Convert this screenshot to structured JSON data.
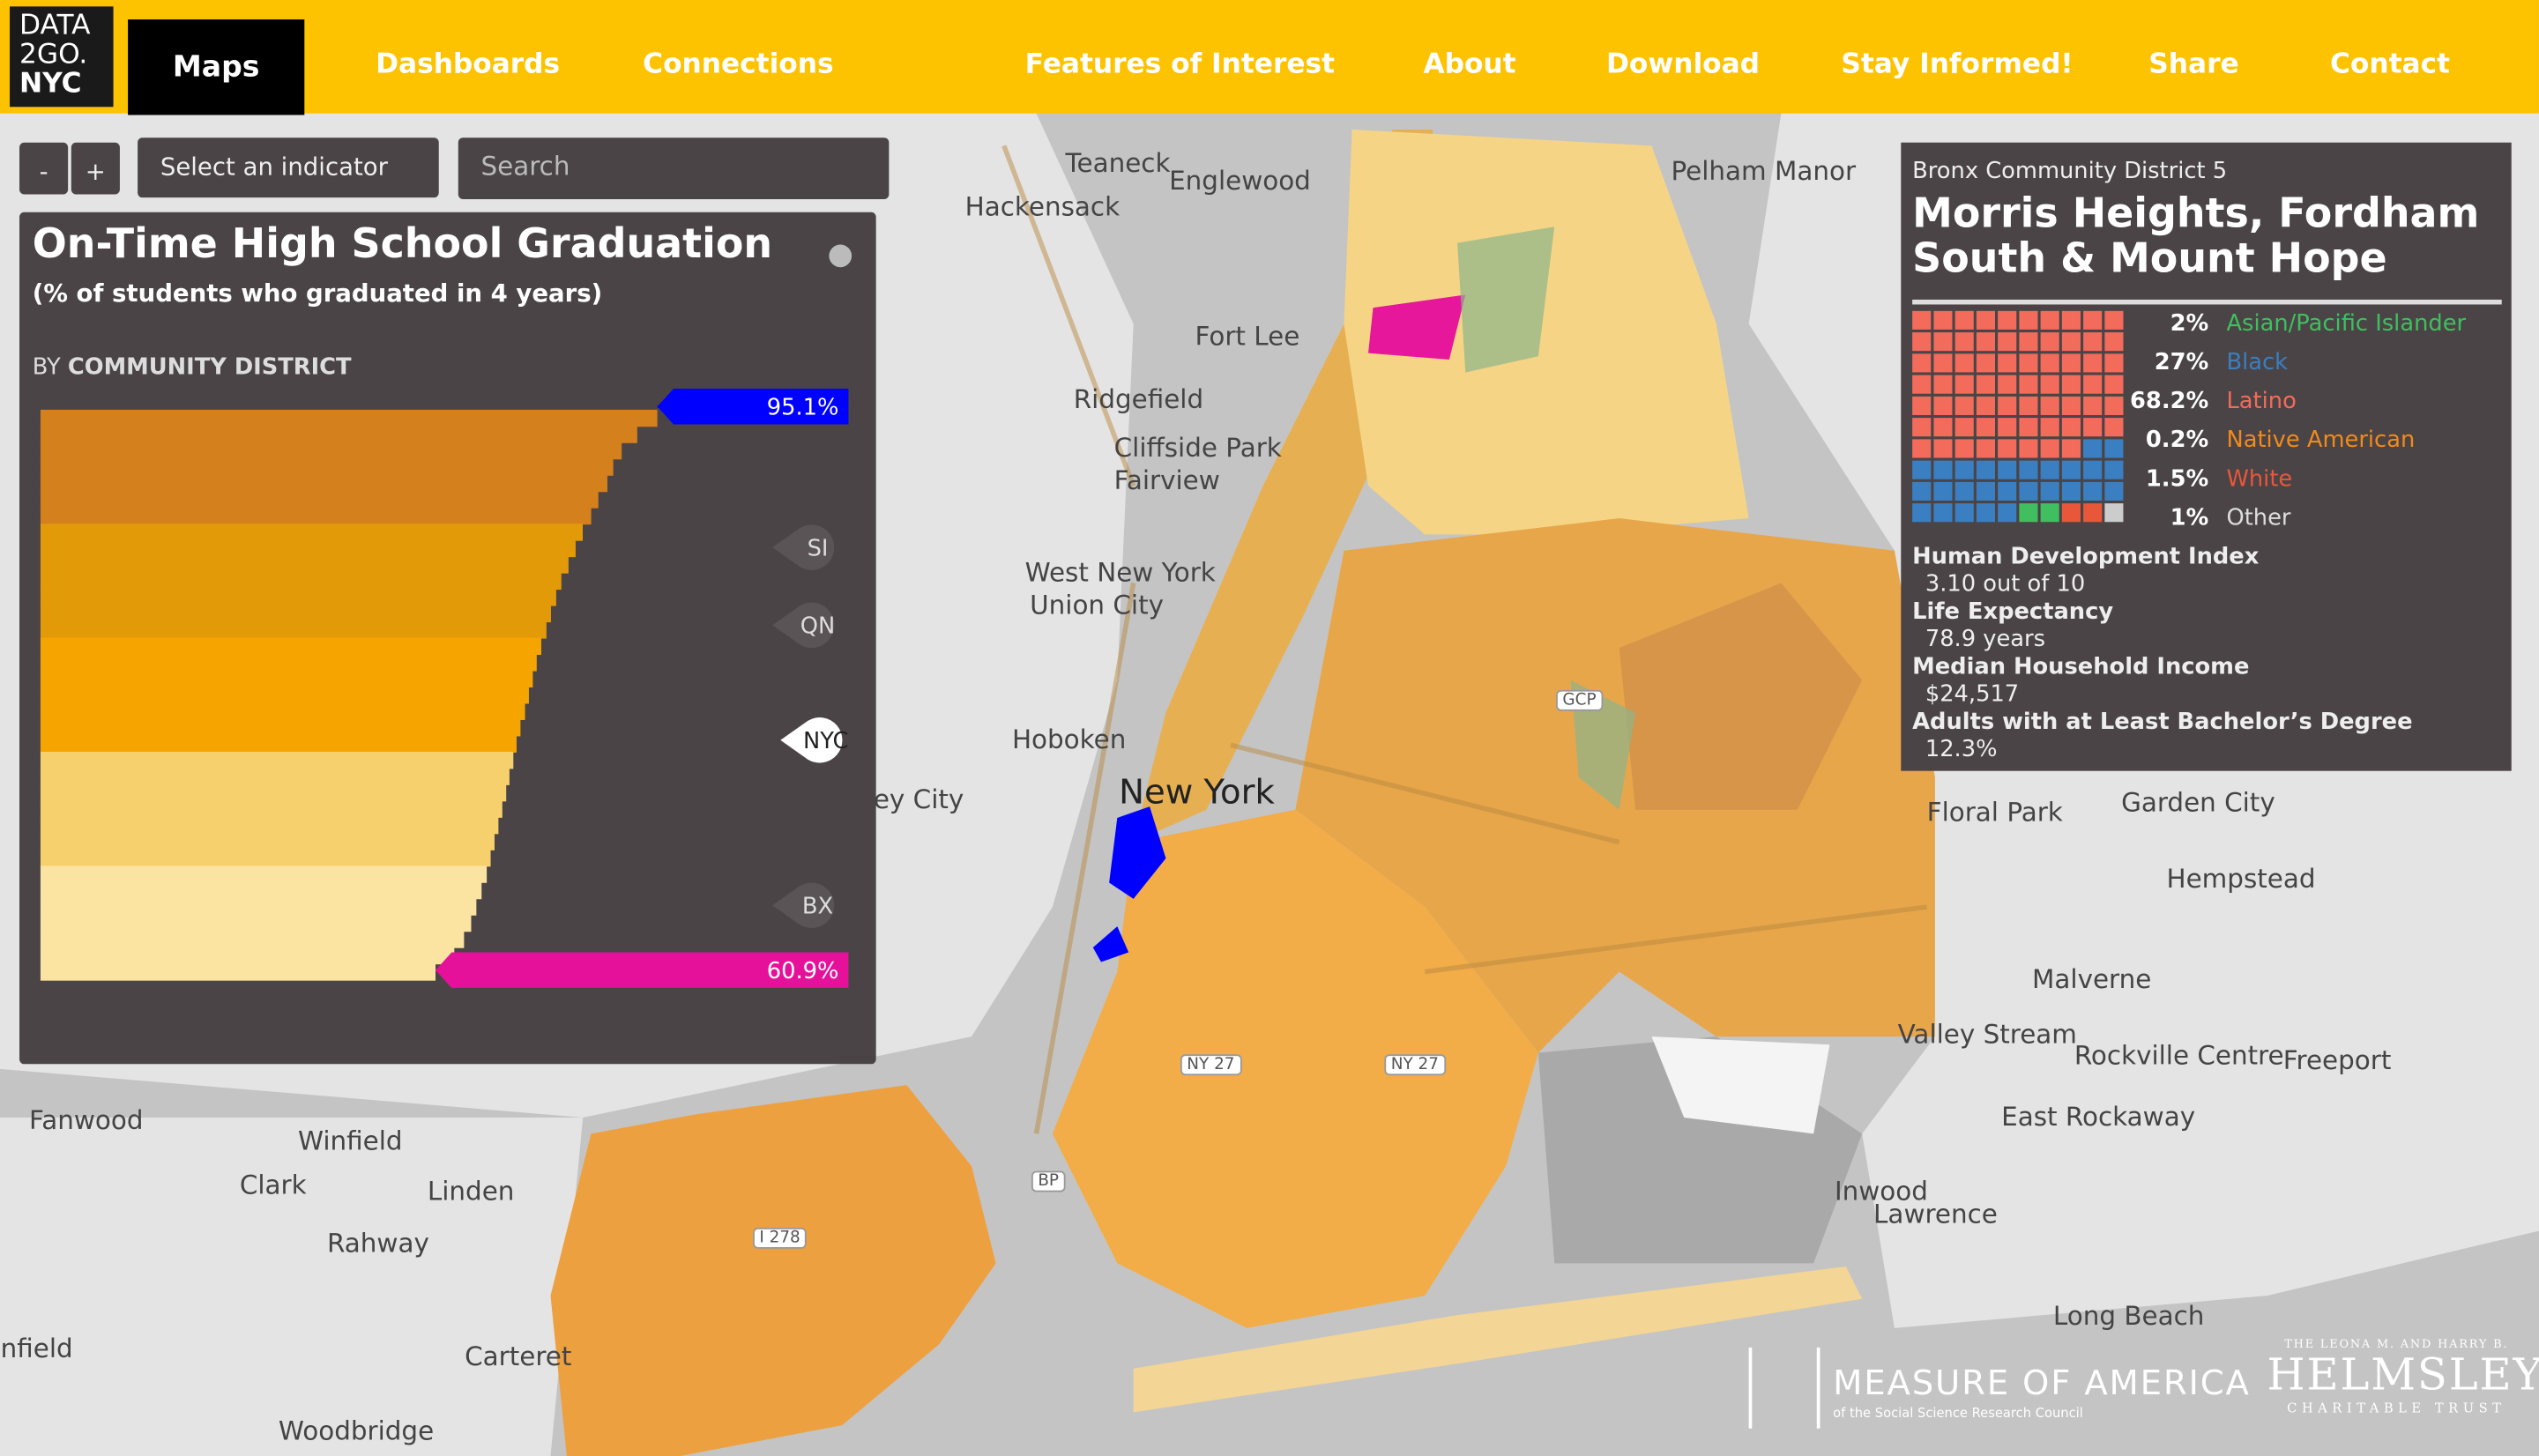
{
  "nav": {
    "logo": [
      "DATA",
      "2GO.",
      "NYC"
    ],
    "active": "Maps",
    "items": [
      "Dashboards",
      "Connections",
      "Features of Interest",
      "About",
      "Download",
      "Stay Informed!",
      "Share",
      "Contact"
    ]
  },
  "controls": {
    "zoom_out": "-",
    "zoom_in": "+",
    "indicator": "Select an indicator",
    "search": "Search"
  },
  "indicator_panel": {
    "title": "On-Time High School Graduation",
    "subtitle": "(% of students who graduated in 4 years)",
    "by": "BY",
    "unit": "COMMUNITY DISTRICT",
    "borough_markers": [
      "SI",
      "QN",
      "NYC",
      "BX"
    ]
  },
  "chart_data": {
    "type": "bar",
    "orientation": "horizontal",
    "values": [
      95.1,
      92.0,
      89.6,
      88.3,
      87.4,
      86.0,
      84.9,
      83.6,
      82.5,
      81.4,
      80.3,
      79.5,
      78.7,
      78.0,
      77.2,
      76.5,
      75.9,
      75.3,
      74.7,
      74.0,
      73.4,
      72.9,
      72.3,
      71.8,
      71.2,
      70.6,
      70.0,
      69.4,
      68.8,
      68.0,
      67.2,
      66.4,
      65.3,
      63.8,
      60.9
    ],
    "value_labels": [
      "95.1%",
      null,
      null,
      null,
      null,
      null,
      null,
      null,
      null,
      null,
      null,
      null,
      null,
      null,
      null,
      null,
      null,
      null,
      null,
      null,
      null,
      null,
      null,
      null,
      null,
      null,
      null,
      null,
      null,
      null,
      null,
      null,
      null,
      null,
      "60.9%"
    ],
    "xlim": [
      0,
      100
    ],
    "band_colors": [
      "#d4801c",
      "#e39a08",
      "#f5a400",
      "#f6d06c",
      "#fbe3a2"
    ],
    "max_color": "#0000ff",
    "min_color": "#e6119a"
  },
  "district_panel": {
    "district": "Bronx Community District 5",
    "name": "Morris Heights, Fordham South & Mount Hope",
    "groups": [
      {
        "label": "Asian/Pacific Islander",
        "value": 2,
        "value_label": "2%",
        "color": "#3fbf5f"
      },
      {
        "label": "Black",
        "value": 27,
        "value_label": "27%",
        "color": "#3a7fc1"
      },
      {
        "label": "Latino",
        "value": 68.2,
        "value_label": "68.2%",
        "color": "#f26b5b"
      },
      {
        "label": "Native American",
        "value": 0.2,
        "value_label": "0.2%",
        "color": "#f08a1d"
      },
      {
        "label": "White",
        "value": 1.5,
        "value_label": "1.5%",
        "color": "#e8573a"
      },
      {
        "label": "Other",
        "value": 1,
        "value_label": "1%",
        "color": "#cccccc"
      }
    ],
    "stats": [
      {
        "label": "Human Development Index",
        "value": "3.10 out of 10"
      },
      {
        "label": "Life Expectancy",
        "value": "78.9 years"
      },
      {
        "label": "Median Household Income",
        "value": "$24,517"
      },
      {
        "label": "Adults with at Least Bachelor’s Degree",
        "value": "12.3%"
      }
    ]
  },
  "map_labels": [
    "Teaneck",
    "Englewood",
    "Hackensack",
    "Pelham Manor",
    "Fort Lee",
    "Ridgefield",
    "Cliffside Park",
    "Fairview",
    "West New York",
    "Union City",
    "Hoboken",
    "New York",
    "Jersey City",
    "Garden City",
    "Floral Park",
    "Hempstead",
    "Malverne",
    "Valley Stream",
    "Rockville Centre",
    "Freeport",
    "East Rockaway",
    "Inwood",
    "Lawrence",
    "Long Beach",
    "Fanwood",
    "Winfield",
    "Clark",
    "Linden",
    "Rahway",
    "Carteret",
    "Woodbridge",
    "Plainfield"
  ],
  "road_badges": [
    "GCP",
    "NY 27",
    "NY 27",
    "BP",
    "I 278"
  ],
  "logos": {
    "moa": "MEASURE OF AMERICA",
    "moa_sub": "of the Social Science Research Council",
    "helmsley_top": "THE LEONA M. AND HARRY B.",
    "helmsley": "HELMSLEY",
    "helmsley_sub": "CHARITABLE TRUST"
  }
}
